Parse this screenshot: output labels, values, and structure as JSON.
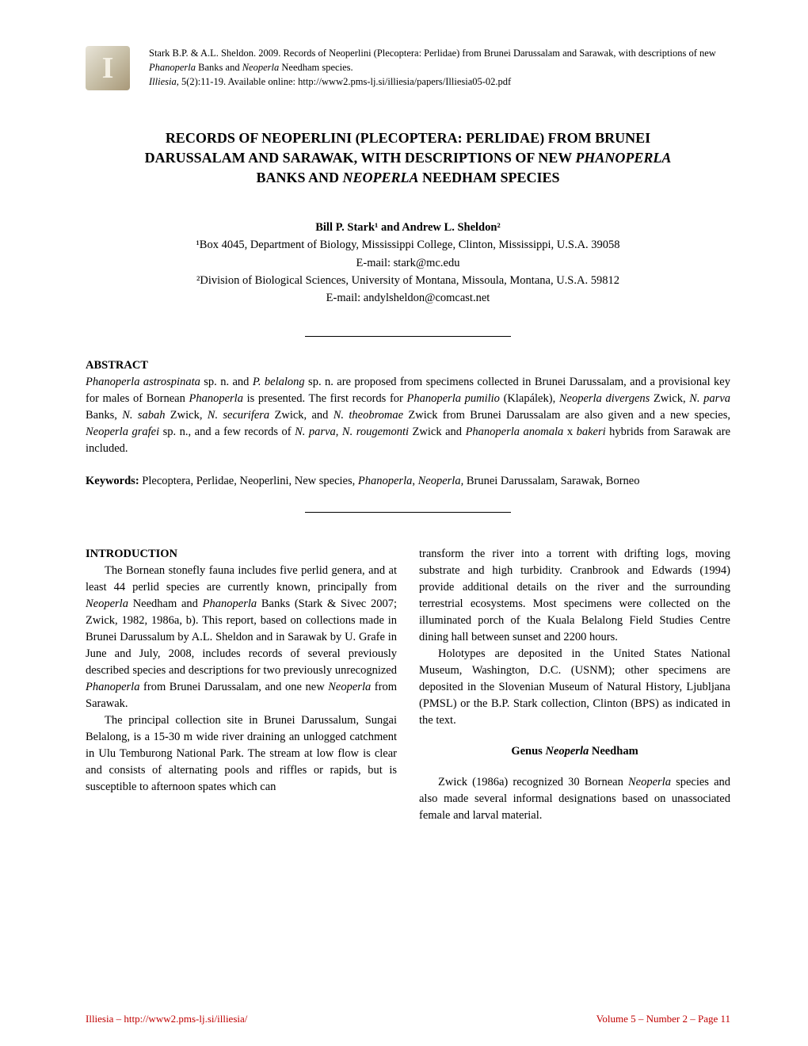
{
  "citation": {
    "line1_prefix": "Stark B.P. & A.L. Sheldon. 2009. Records of Neoperlini (Plecoptera: Perlidae) from Brunei Darussalam and Sarawak, with descriptions of new ",
    "line1_italic1": "Phanoperla",
    "line1_mid1": " Banks and ",
    "line1_italic2": "Neoperla",
    "line1_suffix": " Needham species.",
    "line2_italic": "Illiesia,",
    "line2_text": " 5(2):11-19. Available online: http://www2.pms-lj.si/illiesia/papers/Illiesia05-02.pdf"
  },
  "title": {
    "line1": "RECORDS OF NEOPERLINI (PLECOPTERA: PERLIDAE) FROM BRUNEI",
    "line2_pre": "DARUSSALAM AND SARAWAK, WITH DESCRIPTIONS OF NEW ",
    "line2_italic": "PHANOPERLA",
    "line3_pre": "BANKS AND ",
    "line3_italic": "NEOPERLA",
    "line3_post": " NEEDHAM SPECIES"
  },
  "authors": {
    "names": "Bill P. Stark¹ and Andrew L. Sheldon²",
    "aff1": "¹Box 4045, Department of Biology, Mississippi College, Clinton, Mississippi, U.S.A. 39058",
    "email1": "E-mail: stark@mc.edu",
    "aff2": "²Division of Biological Sciences, University of Montana, Missoula, Montana, U.S.A. 59812",
    "email2": "E-mail: andylsheldon@comcast.net"
  },
  "abstract": {
    "heading": "ABSTRACT",
    "t1": "Phanoperla astrospinata",
    "t2": " sp. n. and ",
    "t3": "P. belalong",
    "t4": " sp. n. are proposed from specimens collected in Brunei Darussalam, and a provisional key for males of Bornean ",
    "t5": "Phanoperla",
    "t6": " is presented. The first records for ",
    "t7": "Phanoperla pumilio",
    "t8": " (Klapálek), ",
    "t9": "Neoperla divergens",
    "t10": " Zwick, ",
    "t11": "N. parva",
    "t12": " Banks, ",
    "t13": "N. sabah",
    "t14": " Zwick, ",
    "t15": "N. securifera",
    "t16": " Zwick, and ",
    "t17": "N. theobromae",
    "t18": " Zwick from Brunei Darussalam are also given and a new species, ",
    "t19": "Neoperla grafei",
    "t20": " sp. n., and a few records of ",
    "t21": "N. parva",
    "t22": ", ",
    "t23": "N. rougemonti",
    "t24": " Zwick and ",
    "t25": "Phanoperla anomala",
    "t26": " x ",
    "t27": "bakeri",
    "t28": " hybrids from Sarawak are included."
  },
  "keywords": {
    "label": "Keywords:",
    "t1": " Plecoptera, Perlidae, Neoperlini, New species, ",
    "t2": "Phanoperla",
    "t3": ", ",
    "t4": "Neoperla,",
    "t5": " Brunei Darussalam, Sarawak, Borneo"
  },
  "intro": {
    "heading": "INTRODUCTION",
    "p1a": "The Bornean stonefly fauna includes five perlid genera, and at least 44 perlid species are currently known, principally from ",
    "p1b": "Neoperla",
    "p1c": " Needham and ",
    "p1d": "Phanoperla",
    "p1e": " Banks (Stark & Sivec 2007; Zwick, 1982, 1986a, b). This report, based on collections made in Brunei Darussalum by A.L. Sheldon and in Sarawak by U. Grafe in June and July, 2008, includes records of several previously described species and descriptions for two previously unrecognized ",
    "p1f": "Phanoperla",
    "p1g": " from Brunei Darussalam, and one new ",
    "p1h": "Neoperla",
    "p1i": " from Sarawak.",
    "p2": "The principal collection site in Brunei Darussalum, Sungai Belalong, is a 15-30 m wide river draining an unlogged catchment in Ulu Temburong National Park. The stream at low flow is clear and consists of alternating pools and riffles or rapids, but is susceptible to afternoon spates which can",
    "p3": "transform the river into a torrent with drifting logs, moving substrate and high turbidity. Cranbrook and Edwards (1994) provide additional details on the river and the surrounding terrestrial ecosystems. Most specimens were collected on the illuminated porch of the Kuala Belalong Field Studies Centre dining hall between sunset and 2200 hours.",
    "p4": "Holotypes are deposited in the United States National Museum, Washington, D.C. (USNM); other specimens are deposited in the Slovenian Museum of Natural History, Ljubljana (PMSL) or the B.P. Stark collection, Clinton (BPS) as indicated in the text."
  },
  "genus": {
    "pre": "Genus ",
    "italic": "Neoperla",
    "post": "  Needham",
    "p1a": "Zwick (1986a) recognized 30 Bornean ",
    "p1b": "Neoperla",
    "p1c": " species and also made several informal designations based on unassociated female and larval material."
  },
  "footer": {
    "left": "Illiesia – http://www2.pms-lj.si/illiesia/",
    "right": "Volume 5 – Number 2 – Page 11"
  },
  "colors": {
    "footer": "#c00000"
  }
}
